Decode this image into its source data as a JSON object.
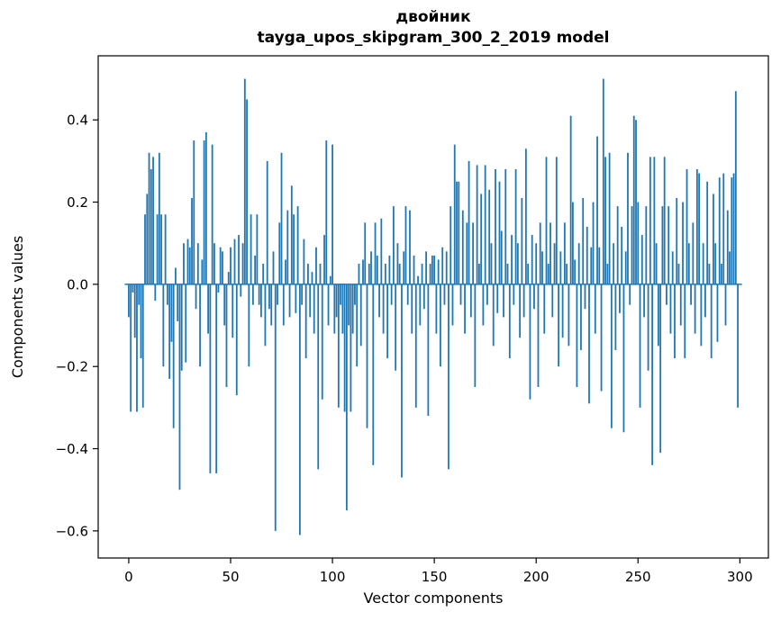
{
  "chart_data": {
    "type": "bar",
    "title": "двойник",
    "subtitle": "tayga_upos_skipgram_300_2_2019 model",
    "xlabel": "Vector components",
    "ylabel": "Components values",
    "bar_color": "#1f77b4",
    "axis_color": "#000000",
    "xlim": [
      -15,
      314
    ],
    "ylim": [
      -0.666,
      0.556
    ],
    "xticks": [
      0,
      50,
      100,
      150,
      200,
      250,
      300
    ],
    "yticks": [
      -0.6,
      -0.4,
      -0.2,
      0.0,
      0.2,
      0.4
    ],
    "x_start": 0,
    "grid": false,
    "legend": "none",
    "values": [
      -0.08,
      -0.31,
      -0.02,
      -0.13,
      -0.31,
      -0.05,
      -0.18,
      -0.3,
      0.17,
      0.22,
      0.32,
      0.28,
      0.31,
      -0.04,
      0.17,
      0.32,
      0.17,
      -0.2,
      0.17,
      -0.05,
      -0.23,
      -0.14,
      -0.35,
      0.04,
      -0.09,
      -0.5,
      -0.21,
      0.1,
      -0.19,
      0.11,
      0.09,
      0.21,
      0.35,
      -0.06,
      0.1,
      -0.2,
      0.06,
      0.35,
      0.37,
      -0.12,
      -0.46,
      0.34,
      0.1,
      -0.46,
      -0.02,
      0.09,
      0.08,
      -0.1,
      -0.25,
      0.03,
      0.09,
      -0.13,
      0.11,
      -0.27,
      0.12,
      -0.03,
      0.1,
      0.5,
      0.45,
      -0.2,
      0.17,
      -0.05,
      0.07,
      0.17,
      -0.05,
      -0.08,
      0.05,
      -0.15,
      0.3,
      -0.06,
      -0.1,
      0.08,
      -0.6,
      -0.05,
      0.15,
      0.32,
      -0.1,
      0.06,
      0.18,
      -0.08,
      0.24,
      0.17,
      -0.07,
      0.19,
      -0.61,
      -0.05,
      0.11,
      -0.18,
      0.05,
      -0.08,
      0.03,
      -0.12,
      0.09,
      -0.45,
      0.05,
      -0.28,
      0.12,
      0.35,
      -0.1,
      0.02,
      0.34,
      -0.12,
      -0.08,
      -0.3,
      -0.05,
      -0.12,
      -0.31,
      -0.55,
      -0.1,
      -0.31,
      -0.12,
      -0.05,
      -0.2,
      0.05,
      -0.15,
      0.06,
      0.15,
      -0.35,
      0.05,
      0.08,
      -0.44,
      0.15,
      0.07,
      -0.08,
      0.16,
      -0.12,
      0.05,
      -0.18,
      0.07,
      -0.05,
      0.19,
      -0.21,
      0.1,
      0.05,
      -0.47,
      0.08,
      0.19,
      -0.05,
      0.18,
      -0.12,
      0.07,
      -0.3,
      0.02,
      -0.1,
      0.05,
      -0.06,
      0.08,
      -0.32,
      0.05,
      0.07,
      0.07,
      -0.12,
      0.06,
      -0.2,
      0.09,
      -0.05,
      0.08,
      -0.45,
      0.19,
      -0.1,
      0.34,
      0.25,
      0.25,
      -0.05,
      0.18,
      -0.12,
      0.15,
      0.3,
      -0.08,
      0.15,
      -0.25,
      0.29,
      0.05,
      0.22,
      -0.1,
      0.29,
      -0.05,
      0.23,
      0.1,
      -0.15,
      0.28,
      -0.07,
      0.25,
      0.13,
      -0.08,
      0.28,
      0.05,
      -0.18,
      0.12,
      -0.05,
      0.28,
      0.1,
      -0.13,
      0.21,
      -0.08,
      0.33,
      0.05,
      -0.28,
      0.12,
      -0.06,
      0.1,
      -0.25,
      0.15,
      0.08,
      -0.12,
      0.31,
      0.05,
      0.15,
      -0.08,
      0.1,
      0.31,
      -0.2,
      0.08,
      -0.13,
      0.15,
      0.05,
      -0.15,
      0.41,
      0.2,
      0.06,
      -0.25,
      0.1,
      -0.16,
      0.21,
      -0.06,
      0.14,
      -0.29,
      0.09,
      0.2,
      -0.12,
      0.36,
      0.09,
      -0.26,
      0.5,
      0.31,
      0.05,
      0.32,
      -0.35,
      0.1,
      -0.16,
      0.19,
      -0.07,
      0.14,
      -0.36,
      0.08,
      0.32,
      -0.05,
      0.19,
      0.41,
      0.4,
      0.2,
      -0.3,
      0.12,
      -0.08,
      0.19,
      -0.21,
      0.31,
      -0.44,
      0.31,
      0.1,
      -0.15,
      -0.41,
      0.19,
      0.31,
      -0.05,
      0.19,
      -0.12,
      0.08,
      -0.18,
      0.21,
      0.05,
      -0.1,
      0.2,
      -0.18,
      0.28,
      0.1,
      -0.05,
      0.15,
      -0.12,
      0.28,
      0.27,
      -0.15,
      0.1,
      -0.08,
      0.25,
      0.05,
      -0.18,
      0.22,
      0.1,
      -0.14,
      0.26,
      0.05,
      0.27,
      -0.1,
      0.18,
      0.08,
      0.26,
      0.27,
      0.47,
      -0.3
    ]
  }
}
